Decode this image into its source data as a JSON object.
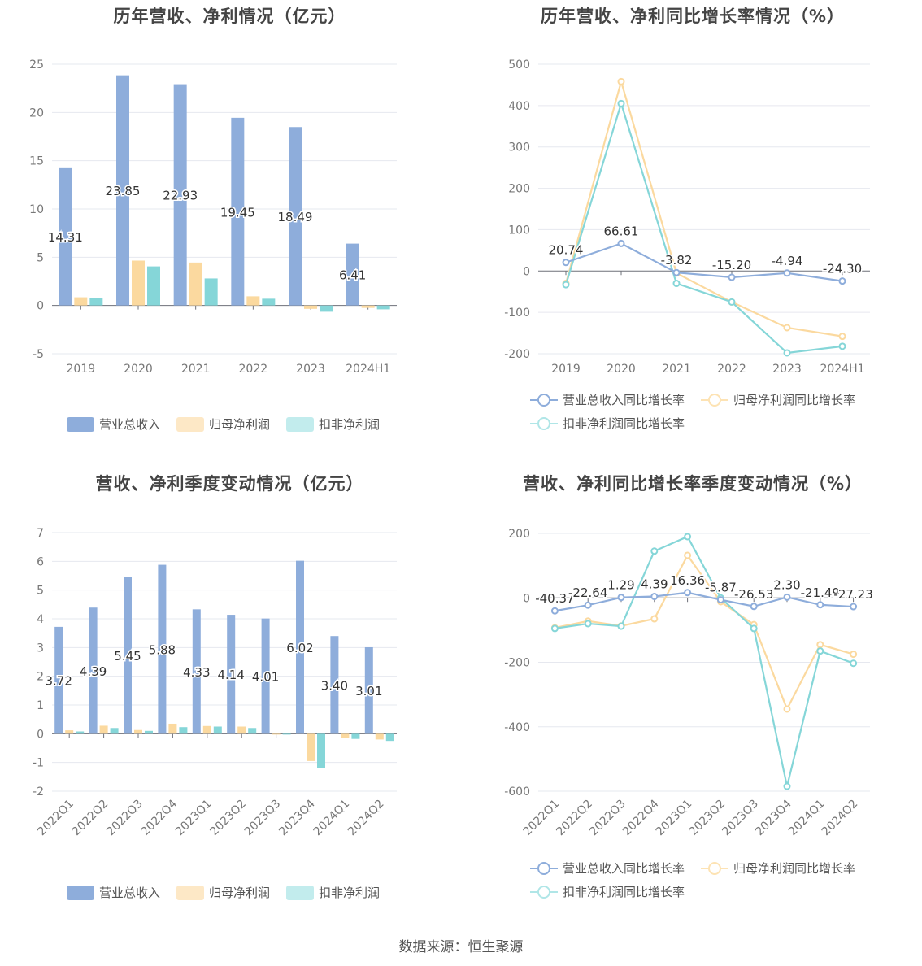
{
  "footer": {
    "source": "数据来源：恒生聚源"
  },
  "colors": {
    "revenue": "#8eaddb",
    "netprofit": "#fbd99f",
    "deducted": "#85d6d8",
    "grid": "#e6e8ef",
    "axis": "#6e7079",
    "tick": "#777"
  },
  "legend": {
    "bars": [
      "营业总收入",
      "归母净利润",
      "扣非净利润"
    ],
    "lines": [
      "营业总收入同比增长率",
      "归母净利润同比增长率",
      "扣非净利润同比增长率"
    ]
  },
  "chart_data": [
    {
      "id": "annual-bar",
      "type": "bar",
      "title": "历年营收、净利情况（亿元）",
      "categories": [
        "2019",
        "2020",
        "2021",
        "2022",
        "2023",
        "2024H1"
      ],
      "ylim": [
        -5,
        25
      ],
      "yticks": [
        -5,
        0,
        5,
        10,
        15,
        20,
        25
      ],
      "grid": true,
      "legend_position": "bottom",
      "series": [
        {
          "name": "营业总收入",
          "values": [
            14.31,
            23.85,
            22.93,
            19.45,
            18.49,
            6.41
          ],
          "labels": [
            "14.31",
            "23.85",
            "22.93",
            "19.45",
            "18.49",
            "6.41"
          ]
        },
        {
          "name": "归母净利润",
          "values": [
            0.85,
            4.65,
            4.45,
            0.95,
            -0.35,
            -0.25
          ]
        },
        {
          "name": "扣非净利润",
          "values": [
            0.8,
            4.05,
            2.8,
            0.7,
            -0.65,
            -0.4
          ]
        }
      ]
    },
    {
      "id": "annual-line",
      "type": "line",
      "title": "历年营收、净利同比增长率情况（%）",
      "categories": [
        "2019",
        "2020",
        "2021",
        "2022",
        "2023",
        "2024H1"
      ],
      "ylim": [
        -200,
        500
      ],
      "yticks": [
        -200,
        -100,
        0,
        100,
        200,
        300,
        400,
        500
      ],
      "grid": true,
      "legend_position": "bottom",
      "series": [
        {
          "name": "营业总收入同比增长率",
          "values": [
            20.74,
            66.61,
            -3.82,
            -15.2,
            -4.94,
            -24.3
          ],
          "labels": [
            "20.74",
            "66.61",
            "-3.82",
            "-15.20",
            "-4.94",
            "-24.30"
          ]
        },
        {
          "name": "归母净利润同比增长率",
          "values": [
            -30,
            458,
            -5,
            -75,
            -137,
            -158
          ]
        },
        {
          "name": "扣非净利润同比增长率",
          "values": [
            -33,
            405,
            -30,
            -75,
            -198,
            -182
          ]
        }
      ]
    },
    {
      "id": "quarter-bar",
      "type": "bar",
      "title": "营收、净利季度变动情况（亿元）",
      "categories": [
        "2022Q1",
        "2022Q2",
        "2022Q3",
        "2022Q4",
        "2023Q1",
        "2023Q2",
        "2023Q3",
        "2023Q4",
        "2024Q1",
        "2024Q2"
      ],
      "ylim": [
        -2,
        7
      ],
      "yticks": [
        -2,
        -1,
        0,
        1,
        2,
        3,
        4,
        5,
        6,
        7
      ],
      "grid": true,
      "legend_position": "bottom",
      "series": [
        {
          "name": "营业总收入",
          "values": [
            3.72,
            4.39,
            5.45,
            5.88,
            4.33,
            4.14,
            4.01,
            6.02,
            3.4,
            3.01
          ],
          "labels": [
            "3.72",
            "4.39",
            "5.45",
            "5.88",
            "4.33",
            "4.14",
            "4.01",
            "6.02",
            "3.40",
            "3.01"
          ]
        },
        {
          "name": "归母净利润",
          "values": [
            0.12,
            0.28,
            0.13,
            0.35,
            0.27,
            0.25,
            -0.03,
            -0.95,
            -0.15,
            -0.2
          ]
        },
        {
          "name": "扣非净利润",
          "values": [
            0.08,
            0.2,
            0.1,
            0.23,
            0.25,
            0.2,
            -0.03,
            -1.2,
            -0.18,
            -0.25
          ]
        }
      ]
    },
    {
      "id": "quarter-line",
      "type": "line",
      "title": "营收、净利同比增长率季度变动情况（%）",
      "categories": [
        "2022Q1",
        "2022Q2",
        "2022Q3",
        "2022Q4",
        "2023Q1",
        "2023Q2",
        "2023Q3",
        "2023Q4",
        "2024Q1",
        "2024Q2"
      ],
      "ylim": [
        -600,
        200
      ],
      "yticks": [
        -600,
        -400,
        -200,
        0,
        200
      ],
      "grid": true,
      "legend_position": "bottom",
      "series": [
        {
          "name": "营业总收入同比增长率",
          "values": [
            -40.37,
            -22.64,
            1.29,
            4.39,
            16.36,
            -5.87,
            -26.53,
            2.3,
            -21.49,
            -27.23
          ],
          "labels": [
            "-40.37",
            "-22.64",
            "1.29",
            "4.39",
            "16.36",
            "-5.87",
            "-26.53",
            "2.30",
            "-21.49",
            "-27.23"
          ]
        },
        {
          "name": "归母净利润同比增长率",
          "values": [
            -93,
            -72,
            -87,
            -65,
            132,
            -12,
            -83,
            -345,
            -145,
            -175
          ]
        },
        {
          "name": "扣非净利润同比增长率",
          "values": [
            -95,
            -80,
            -88,
            145,
            190,
            0,
            -95,
            -585,
            -165,
            -203
          ]
        }
      ]
    }
  ]
}
